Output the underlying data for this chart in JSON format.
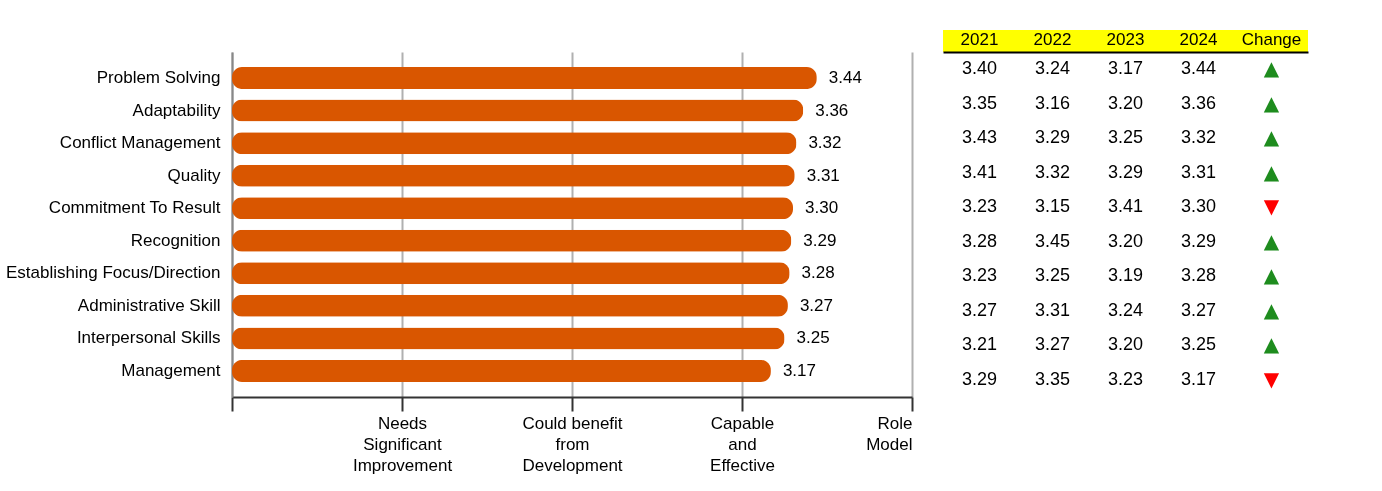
{
  "chart_data": [
    {
      "type": "bar",
      "orientation": "horizontal",
      "categories": [
        "Problem Solving",
        "Adaptability",
        "Conflict Management",
        "Quality",
        "Commitment To Result",
        "Recognition",
        "Establishing Focus/Direction",
        "Administrative Skill",
        "Interpersonal Skills",
        "Management"
      ],
      "values": [
        3.44,
        3.36,
        3.32,
        3.31,
        3.3,
        3.29,
        3.28,
        3.27,
        3.25,
        3.17
      ],
      "color": "#d95600",
      "xlim": [
        0,
        4
      ],
      "annotations": [
        "Needs\nSignificant\nImprovement",
        "Could benefit\nfrom\nDevelopment",
        "Capable\nand\nEffective",
        "Role\nModel"
      ],
      "grid": "x",
      "value_labels": [
        "3.44",
        "3.36",
        "3.32",
        "3.31",
        "3.30",
        "3.29",
        "3.28",
        "3.27",
        "3.25",
        "3.17"
      ]
    },
    {
      "type": "heatmap",
      "categories": [
        "2021",
        "2022",
        "2023",
        "2024",
        "Change"
      ],
      "y_categories": [
        null,
        null,
        null,
        null,
        null,
        null,
        null,
        null,
        null,
        null
      ],
      "cells": [
        [
          3.4,
          3.24,
          3.17,
          3.44,
          null
        ],
        [
          3.35,
          3.16,
          3.2,
          3.36,
          null
        ],
        [
          3.43,
          3.29,
          3.25,
          3.32,
          null
        ],
        [
          3.41,
          3.32,
          3.29,
          3.31,
          null
        ],
        [
          3.23,
          3.15,
          3.41,
          3.3,
          null
        ],
        [
          3.28,
          3.45,
          3.2,
          3.29,
          null
        ],
        [
          3.23,
          3.25,
          3.19,
          3.28,
          null
        ],
        [
          3.27,
          3.31,
          3.24,
          3.27,
          null
        ],
        [
          3.21,
          3.27,
          3.2,
          3.25,
          null
        ],
        [
          3.29,
          3.35,
          3.23,
          3.17,
          null
        ]
      ],
      "cell_labels": [
        [
          "3.40",
          "3.24",
          "3.17",
          "3.44",
          "▲"
        ],
        [
          "3.35",
          "3.16",
          "3.20",
          "3.36",
          "▲"
        ],
        [
          "3.43",
          "3.29",
          "3.25",
          "3.32",
          "▲"
        ],
        [
          "3.41",
          "3.32",
          "3.29",
          "3.31",
          "▲"
        ],
        [
          "3.23",
          "3.15",
          "3.41",
          "3.30",
          "▼"
        ],
        [
          "3.28",
          "3.45",
          "3.20",
          "3.29",
          "▲"
        ],
        [
          "3.23",
          "3.25",
          "3.19",
          "3.28",
          "▲"
        ],
        [
          "3.27",
          "3.31",
          "3.24",
          "3.27",
          "▲"
        ],
        [
          "3.21",
          "3.27",
          "3.20",
          "3.25",
          "▲"
        ],
        [
          "3.29",
          "3.35",
          "3.23",
          "3.17",
          "▼"
        ]
      ],
      "colors": [
        "#000000",
        "#000000",
        "#000000",
        "#000000",
        "#1e8c1e",
        "#000000",
        "#000000",
        "#000000",
        "#000000",
        "#1e8c1e",
        "#000000",
        "#000000",
        "#000000",
        "#000000",
        "#1e8c1e",
        "#000000",
        "#000000",
        "#000000",
        "#000000",
        "#1e8c1e",
        "#000000",
        "#000000",
        "#000000",
        "#000000",
        "#ff0000",
        "#000000",
        "#000000",
        "#000000",
        "#000000",
        "#1e8c1e",
        "#000000",
        "#000000",
        "#000000",
        "#000000",
        "#1e8c1e",
        "#000000",
        "#000000",
        "#000000",
        "#000000",
        "#1e8c1e",
        "#000000",
        "#000000",
        "#000000",
        "#000000",
        "#1e8c1e",
        "#000000",
        "#000000",
        "#000000",
        "#000000",
        "#ff0000"
      ]
    }
  ]
}
